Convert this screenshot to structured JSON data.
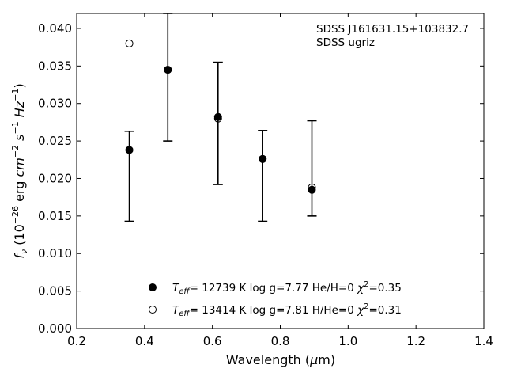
{
  "chart_data": {
    "type": "scatter",
    "title": "",
    "annotation": [
      "SDSS J161631.15+103832.7",
      "SDSS ugriz"
    ],
    "xlabel": "Wavelength (μm)",
    "ylabel": "fν (10⁻²⁶ erg cm⁻² s⁻¹ Hz⁻¹)",
    "xlim": [
      0.2,
      1.4
    ],
    "ylim": [
      0.0,
      0.042
    ],
    "xticks": [
      0.2,
      0.4,
      0.6,
      0.8,
      1.0,
      1.2,
      1.4
    ],
    "xtick_labels": [
      "0.2",
      "0.4",
      "0.6",
      "0.8",
      "1.0",
      "1.2",
      "1.4"
    ],
    "yticks": [
      0.0,
      0.005,
      0.01,
      0.015,
      0.02,
      0.025,
      0.03,
      0.035,
      0.04
    ],
    "ytick_labels": [
      "0.000",
      "0.005",
      "0.010",
      "0.015",
      "0.020",
      "0.025",
      "0.030",
      "0.035",
      "0.040"
    ],
    "grid": false,
    "legend_position": "bottom-center",
    "observed": {
      "name": "",
      "x": [
        0.3551,
        0.4686,
        0.6166,
        0.748,
        0.8932
      ],
      "y": [
        0.0238,
        0.0345,
        0.0282,
        0.0226,
        0.0185
      ],
      "yerr_low": [
        0.0143,
        0.025,
        0.0192,
        0.0143,
        0.015
      ],
      "yerr_high": [
        0.0263,
        0.042,
        0.0355,
        0.0264,
        0.0277
      ]
    },
    "series": [
      {
        "name": "Teff= 12739 K  log g=7.77  He/H=0  χ²=0.35",
        "marker": "filled-circle",
        "x": [
          0.3551,
          0.4686,
          0.6166,
          0.748,
          0.8932
        ],
        "y": [
          0.0238,
          0.0345,
          0.0282,
          0.0226,
          0.0185
        ]
      },
      {
        "name": "Teff= 13414 K  log g=7.81  H/He=0  χ²=0.31",
        "marker": "open-circle",
        "x": [
          0.3551,
          0.4686,
          0.6166,
          0.748,
          0.8932
        ],
        "y": [
          0.038,
          0.0345,
          0.028,
          0.0226,
          0.0188
        ]
      }
    ],
    "legend": [
      {
        "marker": "filled-circle",
        "teff": "12739",
        "logg": "7.77",
        "comp": "He/H=0",
        "chi": "0.35"
      },
      {
        "marker": "open-circle",
        "teff": "13414",
        "logg": "7.81",
        "comp": "H/He=0",
        "chi": "0.31"
      }
    ],
    "colors": {
      "marker": "#000000",
      "axes": "#000000",
      "background": "#ffffff"
    }
  }
}
